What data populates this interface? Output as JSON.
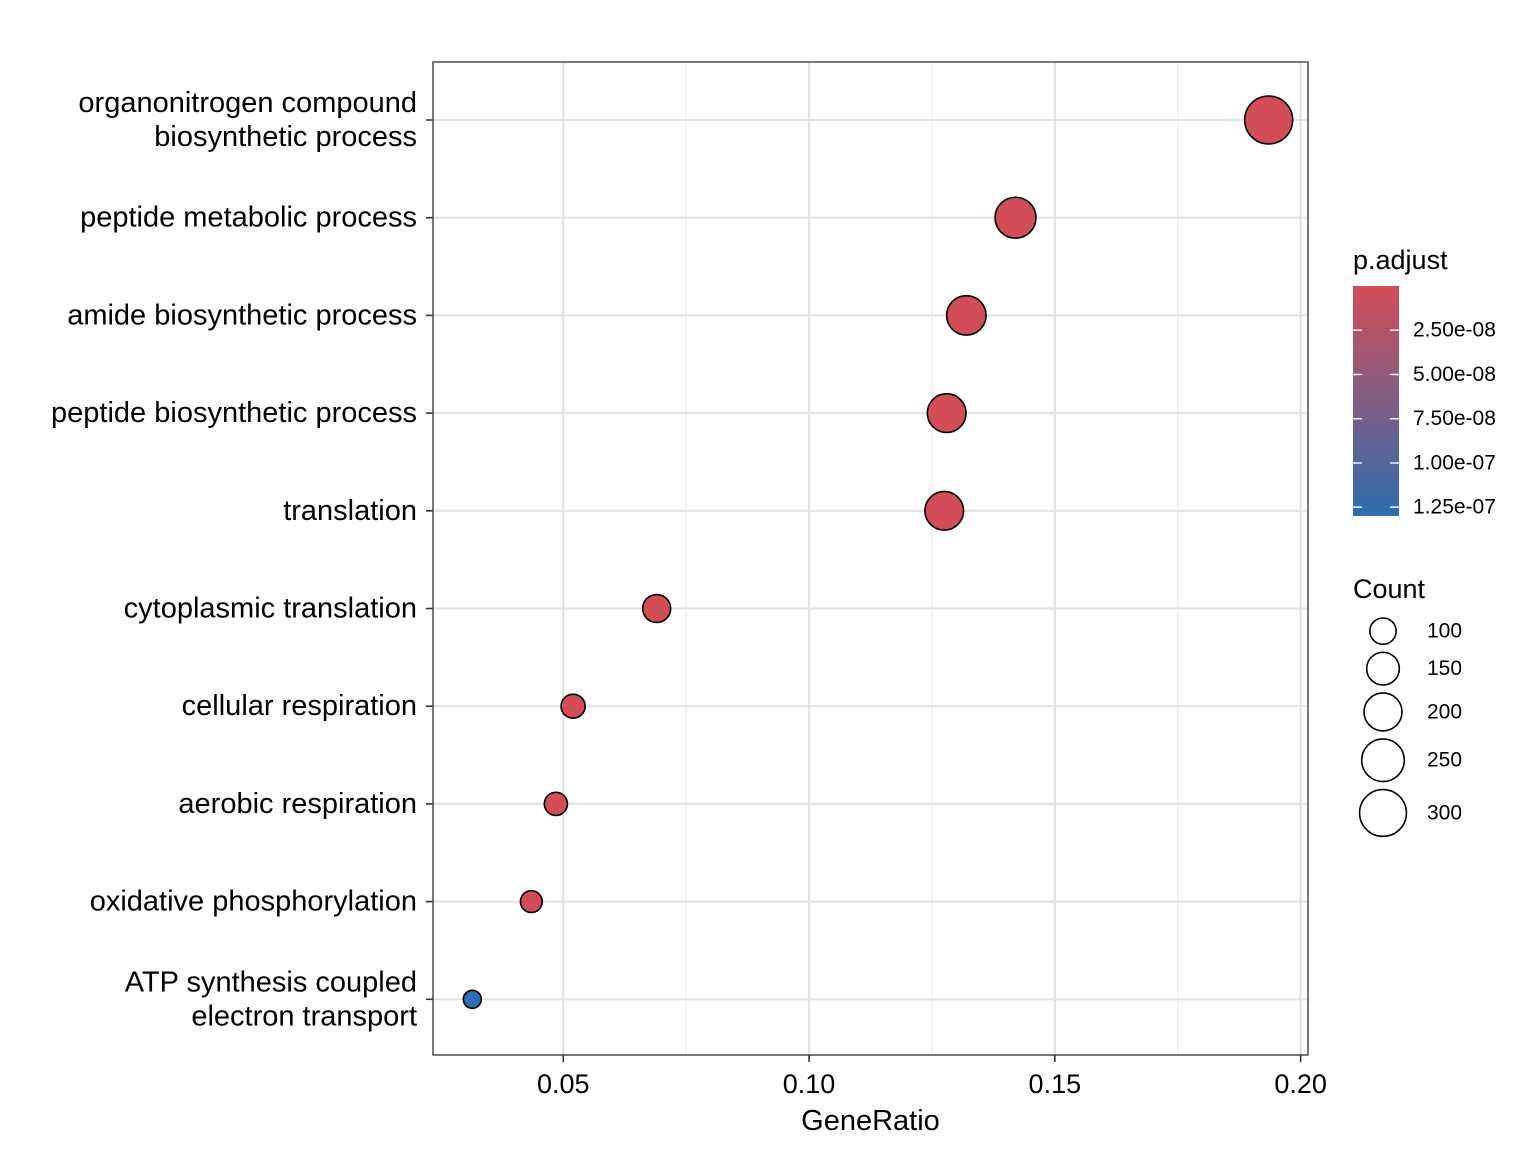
{
  "chart_data": {
    "type": "scatter",
    "title": "",
    "xlabel": "GeneRatio",
    "ylabel": "",
    "xlim": [
      0.0235,
      0.2015
    ],
    "x_ticks": [
      {
        "value": 0.05,
        "label": "0.05"
      },
      {
        "value": 0.1,
        "label": "0.10"
      },
      {
        "value": 0.15,
        "label": "0.15"
      },
      {
        "value": 0.2,
        "label": "0.20"
      }
    ],
    "grid": true,
    "legend_position": "right",
    "categories": [
      {
        "lines": [
          "organonitrogen compound",
          "biosynthetic process"
        ]
      },
      {
        "lines": [
          "peptide metabolic process"
        ]
      },
      {
        "lines": [
          "amide biosynthetic process"
        ]
      },
      {
        "lines": [
          "peptide biosynthetic process"
        ]
      },
      {
        "lines": [
          "translation"
        ]
      },
      {
        "lines": [
          "cytoplasmic translation"
        ]
      },
      {
        "lines": [
          "cellular respiration"
        ]
      },
      {
        "lines": [
          "aerobic respiration"
        ]
      },
      {
        "lines": [
          "oxidative phosphorylation"
        ]
      },
      {
        "lines": [
          "ATP synthesis coupled",
          "electron transport"
        ]
      }
    ],
    "points": [
      {
        "x": 0.1935,
        "count": 315,
        "p_adjust": 2e-10
      },
      {
        "x": 0.142,
        "count": 231,
        "p_adjust": 2e-10
      },
      {
        "x": 0.132,
        "count": 215,
        "p_adjust": 2e-10
      },
      {
        "x": 0.128,
        "count": 208,
        "p_adjust": 2e-10
      },
      {
        "x": 0.1275,
        "count": 207,
        "p_adjust": 2e-10
      },
      {
        "x": 0.069,
        "count": 112,
        "p_adjust": 2e-10
      },
      {
        "x": 0.052,
        "count": 85,
        "p_adjust": 2e-10
      },
      {
        "x": 0.0485,
        "count": 79,
        "p_adjust": 2e-10
      },
      {
        "x": 0.0435,
        "count": 71,
        "p_adjust": 2e-10
      },
      {
        "x": 0.0315,
        "count": 51,
        "p_adjust": 1.3e-07
      }
    ],
    "color_legend": {
      "title": "p.adjust",
      "low_color": "#d24d57",
      "high_color": "#2d6db0",
      "min": 0,
      "max": 1.3e-07,
      "ticks": [
        {
          "value": 2.5e-08,
          "label": "2.50e-08"
        },
        {
          "value": 5e-08,
          "label": "5.00e-08"
        },
        {
          "value": 7.5e-08,
          "label": "7.50e-08"
        },
        {
          "value": 1e-07,
          "label": "1.00e-07"
        },
        {
          "value": 1.25e-07,
          "label": "1.25e-07"
        }
      ]
    },
    "size_legend": {
      "title": "Count",
      "entries": [
        {
          "value": 100,
          "label": "100"
        },
        {
          "value": 150,
          "label": "150"
        },
        {
          "value": 200,
          "label": "200"
        },
        {
          "value": 250,
          "label": "250"
        },
        {
          "value": 300,
          "label": "300"
        }
      ]
    }
  }
}
